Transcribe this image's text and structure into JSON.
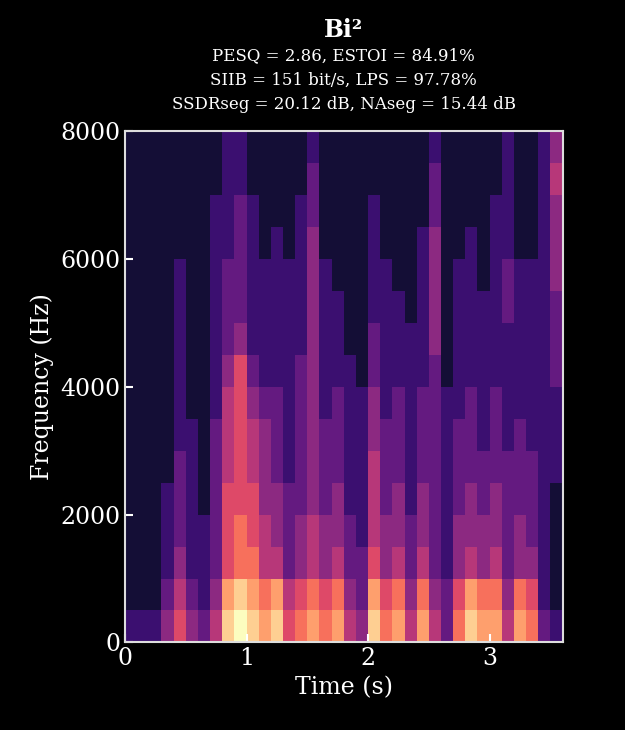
{
  "chart_data": {
    "type": "heatmap",
    "title": "Bi²",
    "subtitle": [
      "PESQ = 2.86, ESTOI = 84.91%",
      "SIIB = 151 bit/s, LPS = 97.78%",
      "SSDRseg = 20.12 dB, NAseg = 15.44 dB"
    ],
    "x_label": "Time (s)",
    "y_label": "Frequency (Hz)",
    "xlim": [
      0,
      3.6
    ],
    "xticks": [
      0,
      1,
      2,
      3
    ],
    "ylim": [
      0,
      8000
    ],
    "yticks": [
      0,
      2000,
      4000,
      6000,
      8000
    ],
    "color": "magma",
    "clim": [
      0,
      10
    ],
    "time_edges": [
      0,
      0.1,
      0.2,
      0.3,
      0.4,
      0.5,
      0.6,
      0.7,
      0.8,
      0.9,
      1.0,
      1.1,
      1.2,
      1.3,
      1.4,
      1.5,
      1.6,
      1.7,
      1.8,
      1.9,
      2.0,
      2.1,
      2.2,
      2.3,
      2.4,
      2.5,
      2.6,
      2.7,
      2.8,
      2.9,
      3.0,
      3.1,
      3.2,
      3.3,
      3.4,
      3.5,
      3.6
    ],
    "frequency_edges": [
      0,
      500,
      1000,
      1500,
      2000,
      2500,
      3000,
      3500,
      4000,
      4500,
      5000,
      5500,
      6000,
      6500,
      7000,
      7500,
      8000
    ],
    "cells": [
      [
        2,
        2,
        2,
        4,
        6,
        4,
        3,
        5,
        9,
        10,
        9,
        8,
        9,
        6,
        7,
        8,
        7,
        8,
        5,
        4,
        9,
        7,
        8,
        5,
        8,
        5,
        3,
        7,
        9,
        8,
        8,
        5,
        8,
        7,
        3,
        2
      ],
      [
        1,
        1,
        1,
        3,
        5,
        3,
        2,
        4,
        8,
        9,
        8,
        7,
        8,
        5,
        6,
        7,
        6,
        7,
        4,
        3,
        8,
        6,
        7,
        4,
        7,
        4,
        3,
        6,
        8,
        7,
        7,
        4,
        7,
        6,
        2,
        1
      ],
      [
        1,
        1,
        1,
        2,
        4,
        2,
        2,
        3,
        6,
        7,
        7,
        5,
        5,
        3,
        4,
        5,
        4,
        5,
        3,
        3,
        6,
        4,
        5,
        3,
        5,
        3,
        2,
        4,
        5,
        4,
        5,
        3,
        4,
        4,
        2,
        1
      ],
      [
        1,
        1,
        1,
        2,
        3,
        2,
        2,
        3,
        6,
        7,
        6,
        5,
        4,
        3,
        4,
        5,
        4,
        4,
        3,
        2,
        5,
        4,
        4,
        3,
        4,
        3,
        2,
        4,
        4,
        4,
        4,
        3,
        4,
        3,
        2,
        1
      ],
      [
        1,
        1,
        1,
        2,
        3,
        2,
        1,
        3,
        6,
        6,
        6,
        4,
        4,
        3,
        3,
        4,
        3,
        4,
        2,
        2,
        5,
        3,
        4,
        2,
        4,
        3,
        2,
        3,
        4,
        3,
        4,
        3,
        3,
        3,
        2,
        1
      ],
      [
        1,
        1,
        1,
        1,
        3,
        2,
        1,
        3,
        5,
        6,
        5,
        4,
        3,
        2,
        3,
        4,
        3,
        3,
        2,
        2,
        5,
        3,
        3,
        2,
        3,
        3,
        2,
        3,
        3,
        3,
        3,
        3,
        3,
        3,
        2,
        2
      ],
      [
        1,
        1,
        1,
        1,
        2,
        2,
        1,
        3,
        5,
        6,
        5,
        4,
        3,
        2,
        3,
        4,
        3,
        3,
        2,
        2,
        4,
        3,
        3,
        2,
        3,
        3,
        2,
        3,
        3,
        2,
        3,
        2,
        3,
        2,
        2,
        2
      ],
      [
        1,
        1,
        1,
        1,
        2,
        1,
        1,
        2,
        5,
        6,
        4,
        3,
        3,
        2,
        3,
        4,
        2,
        3,
        2,
        2,
        4,
        2,
        3,
        2,
        3,
        3,
        2,
        2,
        3,
        2,
        3,
        2,
        2,
        2,
        2,
        2
      ],
      [
        1,
        1,
        1,
        1,
        2,
        1,
        1,
        2,
        4,
        6,
        3,
        2,
        2,
        2,
        3,
        4,
        2,
        2,
        2,
        1,
        3,
        2,
        2,
        2,
        2,
        3,
        1,
        2,
        2,
        2,
        2,
        2,
        2,
        2,
        2,
        3
      ],
      [
        1,
        1,
        1,
        1,
        2,
        1,
        1,
        2,
        3,
        4,
        2,
        2,
        2,
        2,
        2,
        4,
        2,
        2,
        1,
        1,
        3,
        2,
        2,
        2,
        2,
        4,
        1,
        2,
        2,
        2,
        2,
        2,
        2,
        2,
        2,
        3
      ],
      [
        1,
        1,
        1,
        1,
        2,
        1,
        1,
        2,
        3,
        3,
        2,
        2,
        2,
        2,
        2,
        4,
        2,
        2,
        1,
        1,
        2,
        2,
        2,
        1,
        2,
        4,
        1,
        2,
        2,
        2,
        2,
        3,
        2,
        2,
        2,
        3
      ],
      [
        1,
        1,
        1,
        1,
        2,
        1,
        1,
        2,
        3,
        3,
        2,
        2,
        2,
        2,
        2,
        4,
        2,
        1,
        1,
        1,
        2,
        2,
        1,
        1,
        2,
        4,
        1,
        2,
        2,
        1,
        2,
        3,
        2,
        2,
        2,
        4
      ],
      [
        1,
        1,
        1,
        1,
        1,
        1,
        1,
        2,
        2,
        3,
        2,
        1,
        2,
        1,
        2,
        4,
        1,
        1,
        1,
        1,
        2,
        1,
        1,
        1,
        2,
        4,
        1,
        1,
        2,
        1,
        2,
        2,
        1,
        1,
        2,
        4
      ],
      [
        1,
        1,
        1,
        1,
        1,
        1,
        1,
        2,
        2,
        3,
        2,
        1,
        1,
        1,
        2,
        3,
        1,
        1,
        1,
        1,
        2,
        1,
        1,
        1,
        1,
        3,
        1,
        1,
        1,
        1,
        2,
        2,
        1,
        1,
        2,
        4
      ],
      [
        1,
        1,
        1,
        1,
        1,
        1,
        1,
        1,
        2,
        2,
        1,
        1,
        1,
        1,
        1,
        3,
        1,
        1,
        1,
        1,
        1,
        1,
        1,
        1,
        1,
        3,
        1,
        1,
        1,
        1,
        1,
        2,
        1,
        1,
        2,
        5
      ],
      [
        1,
        1,
        1,
        1,
        1,
        1,
        1,
        1,
        2,
        2,
        1,
        1,
        1,
        1,
        1,
        2,
        1,
        1,
        1,
        1,
        1,
        1,
        1,
        1,
        1,
        2,
        1,
        1,
        1,
        1,
        1,
        2,
        1,
        1,
        2,
        4
      ]
    ]
  }
}
